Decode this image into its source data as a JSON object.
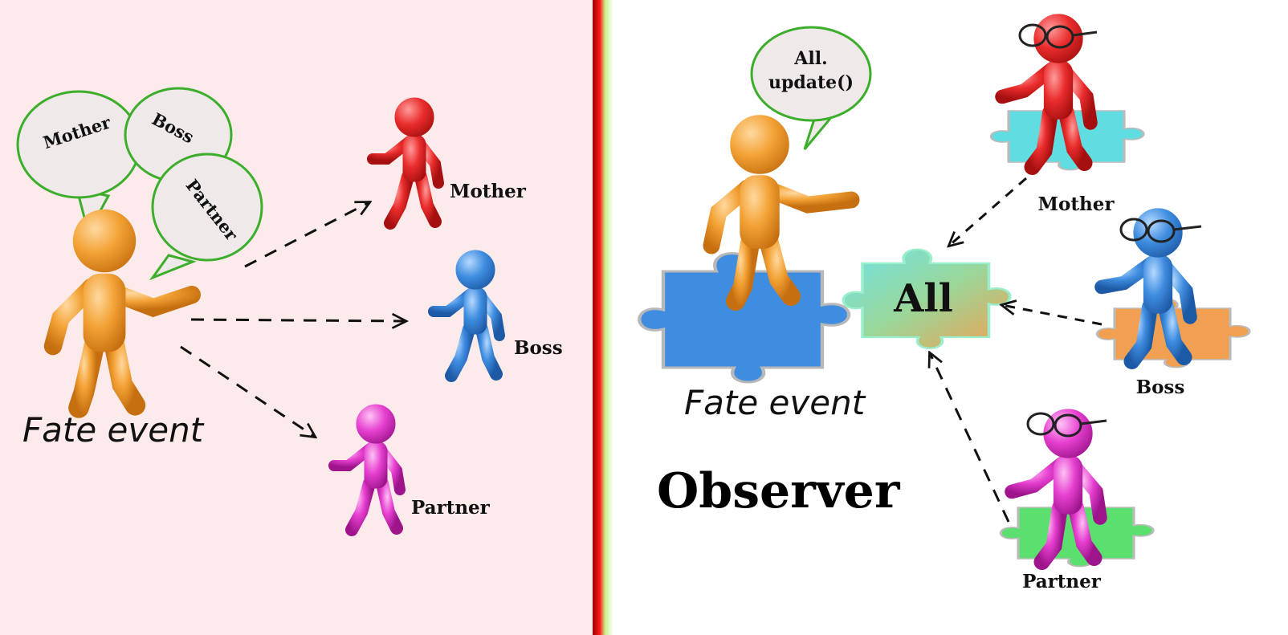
{
  "left_panel": {
    "bubbles": [
      "Mother",
      "Boss",
      "Partner"
    ],
    "actor_label": "Fate event",
    "targets": [
      "Mother",
      "Boss",
      "Partner"
    ]
  },
  "right_panel": {
    "speech": [
      "All.",
      "update()"
    ],
    "hub_label": "All",
    "actor_label": "Fate event",
    "observers": [
      "Mother",
      "Boss",
      "Partner"
    ],
    "title": "Observer"
  },
  "colors": {
    "left_bg": "#fdeaea",
    "right_bg": "#ffffff",
    "divider_red": "#e8141c",
    "divider_green": "#7ed957",
    "orange": "#f09a2c",
    "red": "#e82a2a",
    "blue": "#3f8de0",
    "magenta": "#e83fd2",
    "bubble_stroke": "#3cae2c",
    "bubble_fill": "#efe9e9"
  }
}
